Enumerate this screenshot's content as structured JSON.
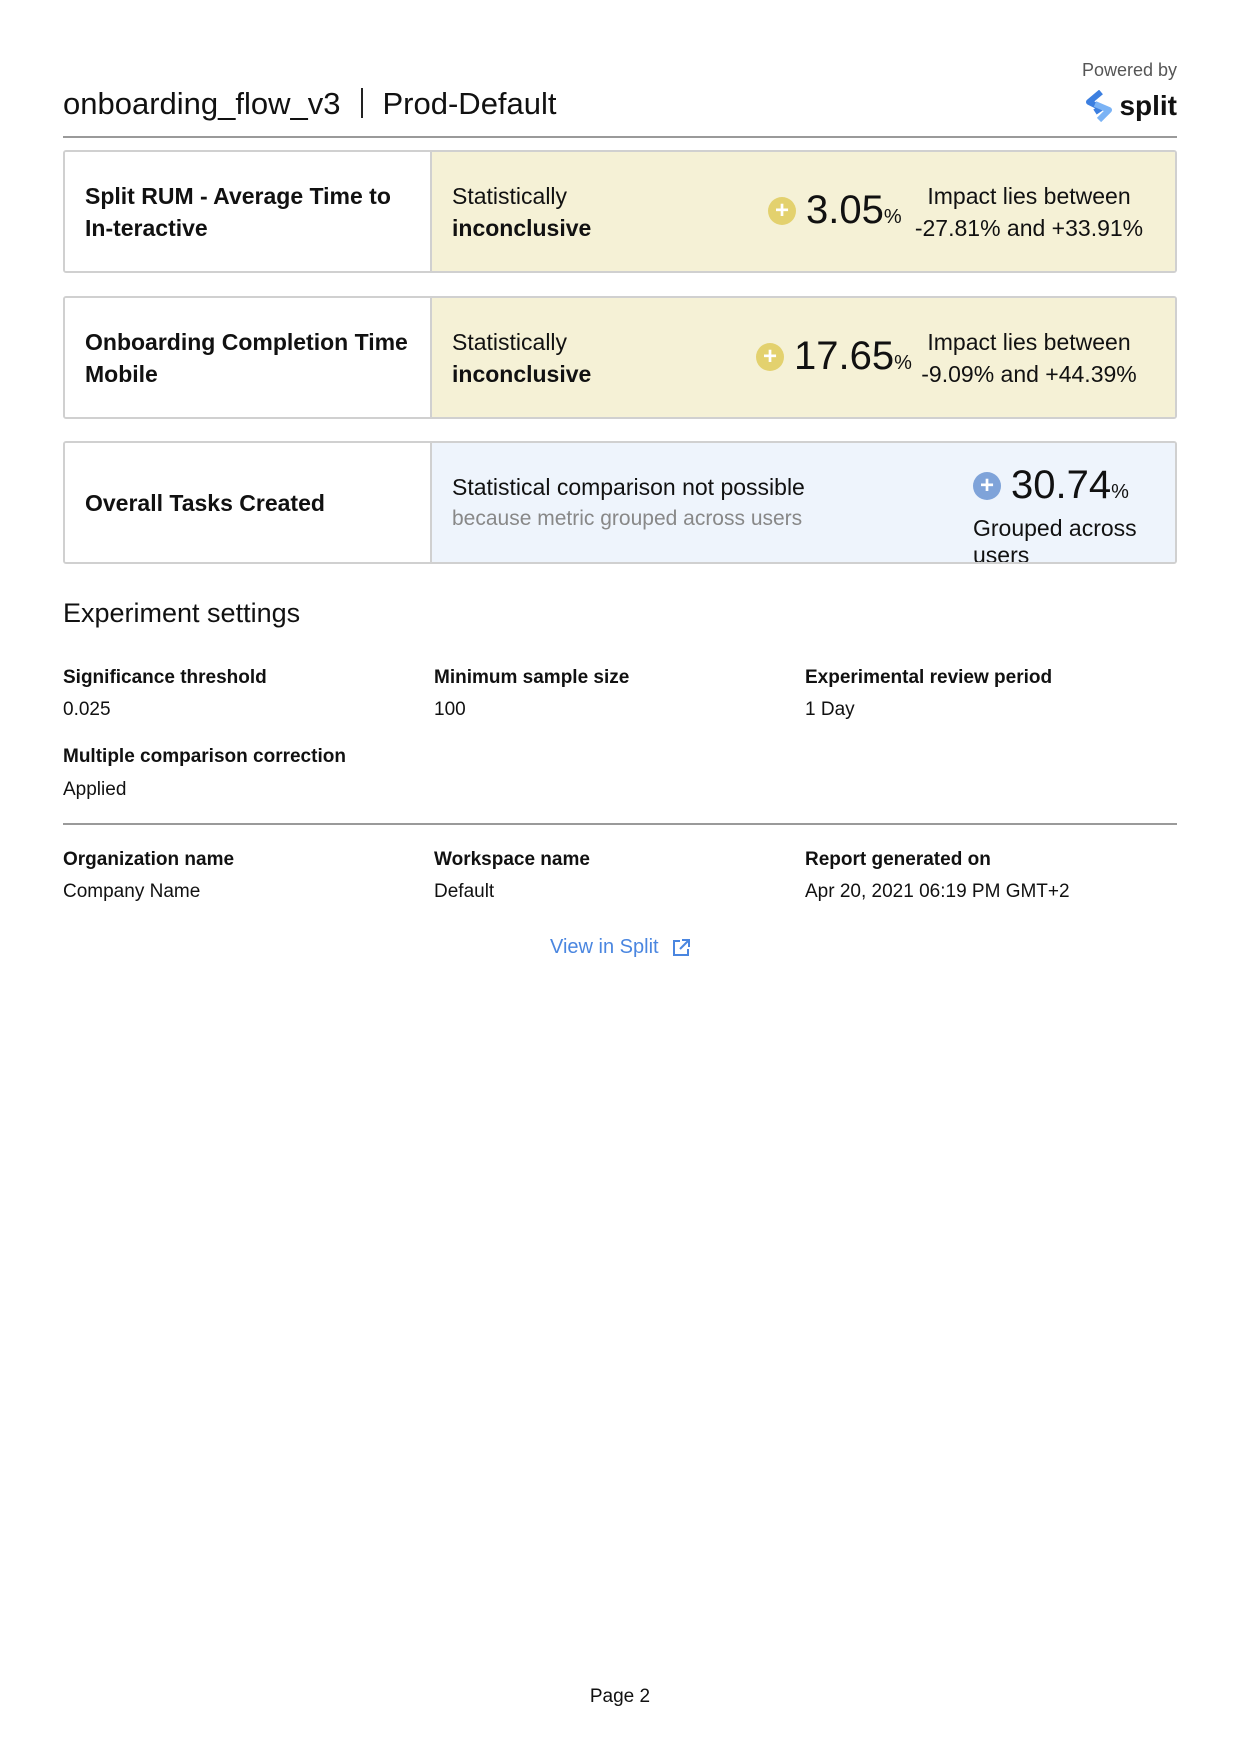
{
  "header": {
    "experiment": "onboarding_flow_v3",
    "environment": "Prod-Default",
    "powered_by": "Powered by",
    "logo_text": "split"
  },
  "metrics": [
    {
      "name": "Split RUM - Average Time to In-teractive",
      "status_line1": "Statistically",
      "status_line2": "inconclusive",
      "value": "3.05",
      "unit": "%",
      "impact_line1": "Impact lies between",
      "impact_line2": "-27.81% and +33.91%",
      "color": "#f5f1d6",
      "icon": "plus-circle-icon"
    },
    {
      "name": "Onboarding Completion Time Mobile",
      "status_line1": "Statistically",
      "status_line2": "inconclusive",
      "value": "17.65",
      "unit": "%",
      "impact_line1": "Impact lies between",
      "impact_line2": "-9.09% and +44.39%",
      "color": "#f5f1d6",
      "icon": "plus-circle-icon"
    },
    {
      "name": "Overall Tasks Created",
      "status_line1": "Statistical comparison not possible",
      "status_line2": "because metric grouped across users",
      "value": "30.74",
      "unit": "%",
      "note": "Grouped across users",
      "color": "#eef4fc",
      "icon": "plus-circle-icon"
    }
  ],
  "settings": {
    "title": "Experiment settings",
    "items": [
      {
        "label": "Significance threshold",
        "value": "0.025"
      },
      {
        "label": "Minimum sample size",
        "value": "100"
      },
      {
        "label": "Experimental review period",
        "value": "1 Day"
      },
      {
        "label": "Multiple comparison correction",
        "value": "Applied"
      }
    ]
  },
  "info": [
    {
      "label": "Organization name",
      "value": "Company Name"
    },
    {
      "label": "Workspace name",
      "value": "Default"
    },
    {
      "label": "Report generated on",
      "value": "Apr 20, 2021 06:19 PM GMT+2"
    }
  ],
  "link": {
    "label": "View in Split",
    "icon": "external-link-icon"
  },
  "footer": {
    "page": "Page 2"
  },
  "colors": {
    "accent": "#4a86e0",
    "inconclusive_icon": "#e3d16e",
    "grouped_icon": "#7fa3d9"
  }
}
